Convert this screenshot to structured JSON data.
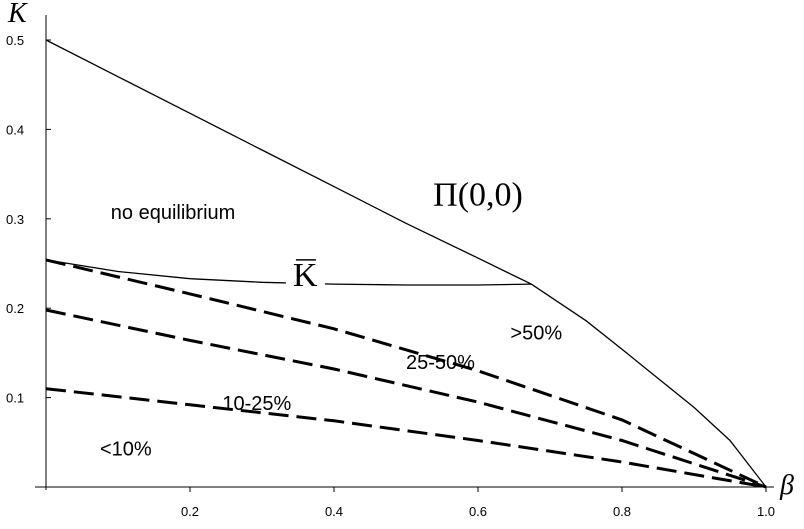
{
  "chart_data": {
    "type": "line",
    "title": "",
    "xlabel": "β",
    "ylabel": "K",
    "xlim": [
      0,
      1.0
    ],
    "ylim": [
      0,
      0.52
    ],
    "xticks": [
      {
        "value": 0.2,
        "label": "0.2"
      },
      {
        "value": 0.4,
        "label": "0.4"
      },
      {
        "value": 0.6,
        "label": "0.6"
      },
      {
        "value": 0.8,
        "label": "0.8"
      },
      {
        "value": 1.0,
        "label": "1.0"
      }
    ],
    "yticks": [
      {
        "value": 0.1,
        "label": "0.1"
      },
      {
        "value": 0.2,
        "label": "0.2"
      },
      {
        "value": 0.3,
        "label": "0.3"
      },
      {
        "value": 0.4,
        "label": "0.4"
      },
      {
        "value": 0.5,
        "label": "0.5"
      }
    ],
    "grid": false,
    "series": [
      {
        "name": "Π(0,0)",
        "style": "solid",
        "label_at": [
          0.6,
          0.315
        ],
        "points": [
          [
            0,
            0.5
          ],
          [
            0.1,
            0.459
          ],
          [
            0.2,
            0.418
          ],
          [
            0.3,
            0.377
          ],
          [
            0.4,
            0.336
          ],
          [
            0.5,
            0.295
          ],
          [
            0.6,
            0.256
          ],
          [
            0.674,
            0.227
          ],
          [
            0.75,
            0.186
          ],
          [
            0.8,
            0.154
          ],
          [
            0.9,
            0.089
          ],
          [
            0.95,
            0.052
          ],
          [
            1.0,
            0
          ]
        ]
      },
      {
        "name": "K̄",
        "style": "solid",
        "label_at": [
          0.36,
          0.225
        ],
        "points": [
          [
            0,
            0.254
          ],
          [
            0.1,
            0.241
          ],
          [
            0.2,
            0.233
          ],
          [
            0.3,
            0.229
          ],
          [
            0.4,
            0.227
          ],
          [
            0.5,
            0.226
          ],
          [
            0.6,
            0.226
          ],
          [
            0.674,
            0.227
          ]
        ]
      },
      {
        "name": "",
        "style": "dashed",
        "points": [
          [
            0,
            0.254
          ],
          [
            0.2,
            0.216
          ],
          [
            0.4,
            0.177
          ],
          [
            0.6,
            0.13
          ],
          [
            0.8,
            0.075
          ],
          [
            1.0,
            0
          ]
        ]
      },
      {
        "name": "",
        "style": "dashed",
        "points": [
          [
            0,
            0.198
          ],
          [
            0.2,
            0.164
          ],
          [
            0.4,
            0.132
          ],
          [
            0.6,
            0.095
          ],
          [
            0.8,
            0.052
          ],
          [
            1.0,
            0
          ]
        ]
      },
      {
        "name": "",
        "style": "dashed",
        "points": [
          [
            0,
            0.11
          ],
          [
            0.2,
            0.092
          ],
          [
            0.4,
            0.074
          ],
          [
            0.6,
            0.052
          ],
          [
            0.8,
            0.028
          ],
          [
            1.0,
            0
          ]
        ]
      }
    ],
    "annotations": [
      {
        "text": "no equilibrium",
        "x": 0.09,
        "y": 0.3
      },
      {
        "text": ">50%",
        "x": 0.645,
        "y": 0.165
      },
      {
        "text": "25-50%",
        "x": 0.5,
        "y": 0.132
      },
      {
        "text": "10-25%",
        "x": 0.245,
        "y": 0.086
      },
      {
        "text": "<10%",
        "x": 0.075,
        "y": 0.035
      }
    ]
  }
}
